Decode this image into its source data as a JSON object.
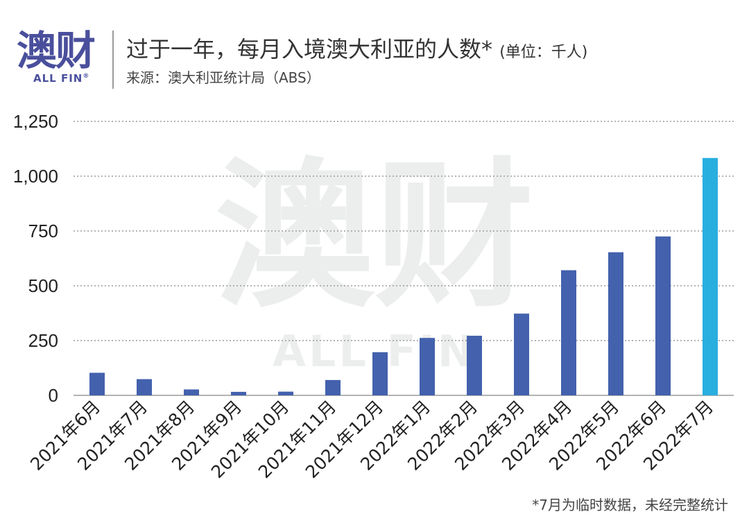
{
  "header": {
    "logo_text": "澳财",
    "logo_sub": "ALL FIN",
    "logo_reg": "®",
    "title": "过于一年，每月入境澳大利亚的人数*",
    "unit": "(单位：千人)",
    "source": "来源：澳大利亚统计局（ABS）"
  },
  "footnote": "*7月为临时数据，未经完整统计",
  "colors": {
    "bar": "#4361ad",
    "highlight": "#29aee0",
    "grid": "#9a9a9a",
    "watermark": "#eceeed"
  },
  "watermark": {
    "main": "澳财",
    "sub": "ALL FIN"
  },
  "chart_data": {
    "type": "bar",
    "categories": [
      "2021年6月",
      "2021年7月",
      "2021年8月",
      "2021年9月",
      "2021年10月",
      "2021年11月",
      "2021年12月",
      "2022年1月",
      "2022年2月",
      "2022年3月",
      "2022年4月",
      "2022年5月",
      "2022年6月",
      "2022年7月"
    ],
    "values": [
      103,
      74,
      27,
      16,
      17,
      70,
      197,
      262,
      272,
      373,
      571,
      653,
      725,
      1083
    ],
    "highlight_index": 13,
    "ylim": [
      0,
      1250
    ],
    "yticks": [
      0,
      250,
      500,
      750,
      1000,
      1250
    ],
    "ytick_labels": [
      "0",
      "250",
      "500",
      "750",
      "1,000",
      "1,250"
    ],
    "grid": "horizontal dotted",
    "xlabel": "",
    "ylabel": ""
  }
}
